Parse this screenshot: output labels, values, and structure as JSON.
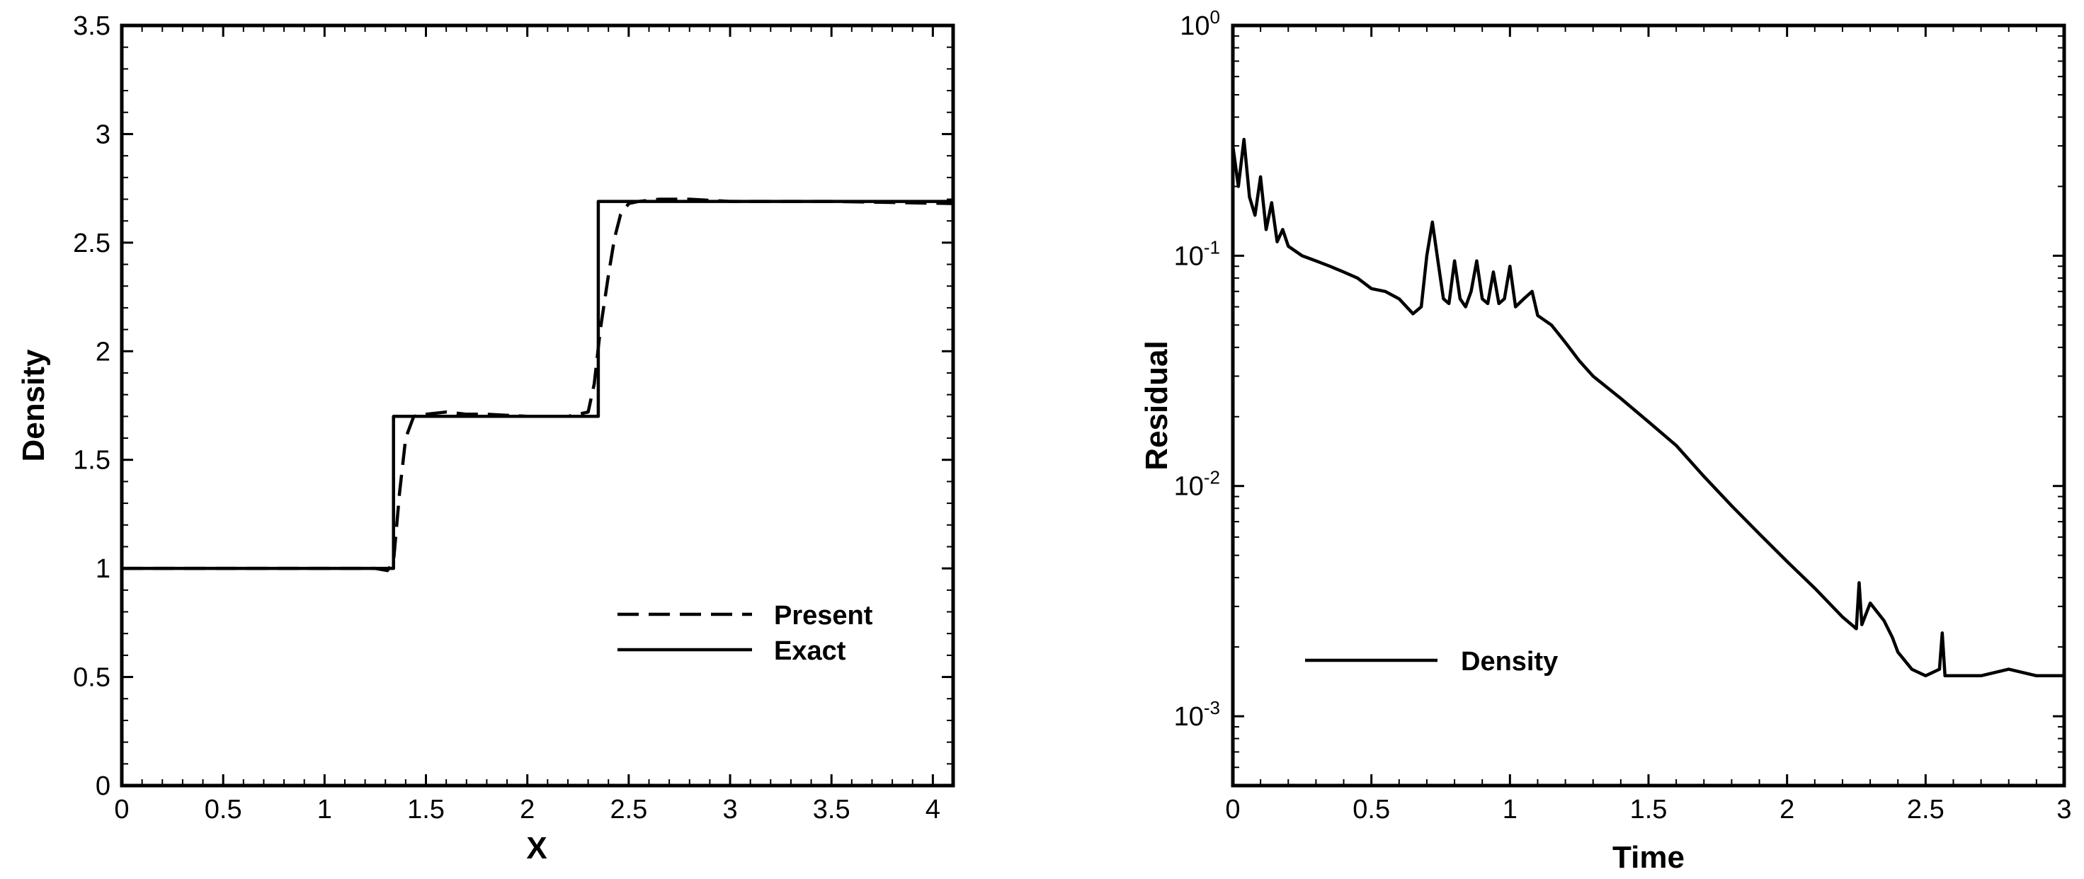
{
  "chart_data": [
    {
      "type": "line",
      "xlabel": "X",
      "ylabel": "Density",
      "xlim": [
        0,
        4.1
      ],
      "ylim": [
        0,
        3.5
      ],
      "xticks": [
        0,
        0.5,
        1,
        1.5,
        2,
        2.5,
        3,
        3.5,
        4
      ],
      "xtick_labels": [
        "0",
        "0.5",
        "1",
        "1.5",
        "2",
        "2.5",
        "3",
        "3.5",
        "4"
      ],
      "yticks": [
        0,
        0.5,
        1,
        1.5,
        2,
        2.5,
        3,
        3.5
      ],
      "ytick_labels": [
        "0",
        "0.5",
        "1",
        "1.5",
        "2",
        "2.5",
        "3",
        "3.5"
      ],
      "legend_position": "lower-right",
      "series": [
        {
          "name": "Present",
          "style": "dashed",
          "x": [
            0,
            0.5,
            1.0,
            1.25,
            1.31,
            1.34,
            1.37,
            1.4,
            1.44,
            1.5,
            1.6,
            1.7,
            1.8,
            2.0,
            2.2,
            2.3,
            2.33,
            2.36,
            2.4,
            2.43,
            2.46,
            2.5,
            2.55,
            2.65,
            2.8,
            3.0,
            3.5,
            4.1
          ],
          "y": [
            1.0,
            1.0,
            1.0,
            1.0,
            0.99,
            1.03,
            1.35,
            1.6,
            1.7,
            1.71,
            1.72,
            1.71,
            1.71,
            1.7,
            1.7,
            1.72,
            1.85,
            2.1,
            2.35,
            2.52,
            2.63,
            2.68,
            2.69,
            2.7,
            2.7,
            2.69,
            2.69,
            2.68
          ]
        },
        {
          "name": "Exact",
          "style": "solid",
          "x": [
            0,
            1.34,
            1.34,
            2.35,
            2.35,
            4.1
          ],
          "y": [
            1.0,
            1.0,
            1.7,
            1.7,
            2.69,
            2.69
          ]
        }
      ]
    },
    {
      "type": "line",
      "xlabel": "Time",
      "ylabel": "Residual",
      "xlim": [
        0,
        3
      ],
      "ylim": [
        0.0005,
        1
      ],
      "yscale": "log",
      "xticks": [
        0,
        0.5,
        1,
        1.5,
        2,
        2.5,
        3
      ],
      "xtick_labels": [
        "0",
        "0.5",
        "1",
        "1.5",
        "2",
        "2.5",
        "3"
      ],
      "yticks": [
        0.001,
        0.01,
        0.1,
        1
      ],
      "ytick_labels": [
        {
          "base": "10",
          "exp": "-3"
        },
        {
          "base": "10",
          "exp": "-2"
        },
        {
          "base": "10",
          "exp": "-1"
        },
        {
          "base": "10",
          "exp": "0"
        }
      ],
      "legend_position": "lower-left",
      "series": [
        {
          "name": "Density",
          "style": "solid",
          "x": [
            0,
            0.02,
            0.04,
            0.06,
            0.08,
            0.1,
            0.12,
            0.14,
            0.16,
            0.18,
            0.2,
            0.25,
            0.3,
            0.35,
            0.4,
            0.45,
            0.5,
            0.55,
            0.6,
            0.65,
            0.68,
            0.7,
            0.72,
            0.74,
            0.76,
            0.78,
            0.8,
            0.82,
            0.84,
            0.86,
            0.88,
            0.9,
            0.92,
            0.94,
            0.96,
            0.98,
            1.0,
            1.02,
            1.05,
            1.08,
            1.1,
            1.15,
            1.2,
            1.25,
            1.3,
            1.4,
            1.5,
            1.6,
            1.7,
            1.8,
            1.9,
            2.0,
            2.1,
            2.2,
            2.25,
            2.26,
            2.27,
            2.3,
            2.35,
            2.38,
            2.4,
            2.45,
            2.5,
            2.55,
            2.56,
            2.57,
            2.6,
            2.7,
            2.8,
            2.9,
            3.0
          ],
          "y": [
            0.3,
            0.2,
            0.32,
            0.18,
            0.15,
            0.22,
            0.13,
            0.17,
            0.115,
            0.13,
            0.11,
            0.1,
            0.095,
            0.09,
            0.085,
            0.08,
            0.072,
            0.07,
            0.065,
            0.056,
            0.06,
            0.1,
            0.14,
            0.095,
            0.065,
            0.062,
            0.095,
            0.065,
            0.06,
            0.07,
            0.095,
            0.065,
            0.062,
            0.085,
            0.062,
            0.065,
            0.09,
            0.06,
            0.065,
            0.07,
            0.055,
            0.05,
            0.042,
            0.035,
            0.03,
            0.024,
            0.019,
            0.015,
            0.011,
            0.0082,
            0.0062,
            0.0047,
            0.0036,
            0.0027,
            0.0024,
            0.0038,
            0.0025,
            0.0031,
            0.0026,
            0.0022,
            0.0019,
            0.0016,
            0.0015,
            0.0016,
            0.0023,
            0.0015,
            0.0015,
            0.0015,
            0.0016,
            0.0015,
            0.0015
          ]
        }
      ]
    }
  ]
}
